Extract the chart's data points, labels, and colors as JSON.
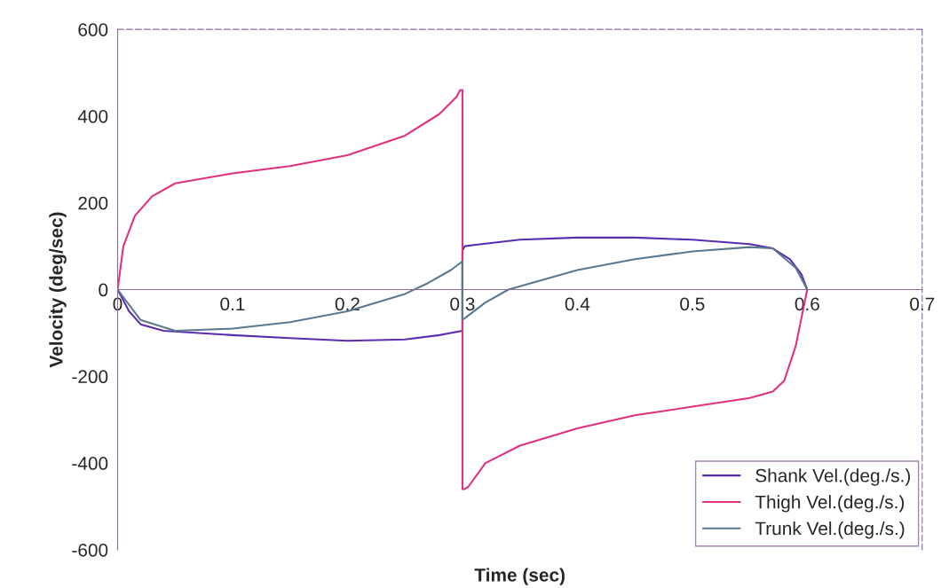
{
  "chart_data": {
    "type": "line",
    "xlabel": "Time (sec)",
    "ylabel": "Velocity (deg/sec)",
    "xlim": [
      0,
      0.7
    ],
    "xticks": [
      0,
      0.1,
      0.2,
      0.3,
      0.4,
      0.5,
      0.6,
      0.7
    ],
    "ylim": [
      -600,
      600
    ],
    "yticks": [
      -600,
      -400,
      -200,
      0,
      200,
      400,
      600
    ],
    "grid": false,
    "legend": "bottom right",
    "marker": "none",
    "line_style": "solid",
    "series": [
      {
        "name": "Shank Vel.(deg./s.)",
        "color": "#5a2db0",
        "x": [
          0,
          0.01,
          0.02,
          0.04,
          0.1,
          0.15,
          0.2,
          0.25,
          0.28,
          0.3,
          0.3,
          0.302,
          0.31,
          0.35,
          0.4,
          0.45,
          0.5,
          0.55,
          0.57,
          0.585,
          0.595,
          0.6
        ],
        "values": [
          0,
          -50,
          -80,
          -95,
          -105,
          -112,
          -118,
          -115,
          -105,
          -95,
          90,
          100,
          103,
          115,
          120,
          120,
          115,
          105,
          95,
          70,
          35,
          0
        ]
      },
      {
        "name": "Thigh Vel.(deg./s.)",
        "color": "#e0307f",
        "x": [
          0,
          0.005,
          0.015,
          0.03,
          0.05,
          0.1,
          0.15,
          0.2,
          0.25,
          0.28,
          0.295,
          0.298,
          0.3,
          0.3,
          0.302,
          0.305,
          0.32,
          0.35,
          0.4,
          0.45,
          0.5,
          0.55,
          0.57,
          0.58,
          0.59,
          0.6
        ],
        "values": [
          0,
          100,
          170,
          215,
          245,
          268,
          285,
          310,
          355,
          405,
          445,
          460,
          460,
          -460,
          -460,
          -455,
          -400,
          -360,
          -320,
          -290,
          -270,
          -250,
          -235,
          -210,
          -130,
          0
        ]
      },
      {
        "name": "Trunk Vel.(deg./s.)",
        "color": "#5a7890",
        "x": [
          0,
          0.02,
          0.05,
          0.1,
          0.15,
          0.2,
          0.25,
          0.27,
          0.29,
          0.3,
          0.3,
          0.305,
          0.32,
          0.34,
          0.4,
          0.45,
          0.5,
          0.55,
          0.57,
          0.59,
          0.6
        ],
        "values": [
          0,
          -70,
          -95,
          -90,
          -75,
          -50,
          -10,
          15,
          45,
          65,
          -70,
          -60,
          -30,
          0,
          45,
          70,
          88,
          98,
          95,
          50,
          0
        ]
      }
    ]
  }
}
